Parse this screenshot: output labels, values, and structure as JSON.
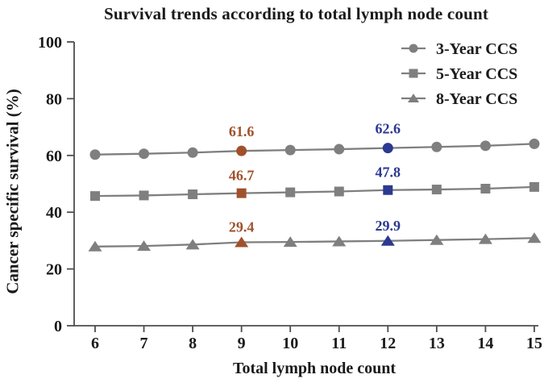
{
  "chart_data": {
    "type": "line",
    "title": "Survival trends according to total lymph node count",
    "xlabel": "Total lymph node count",
    "ylabel": "Cancer specific survival (%)",
    "x": [
      6,
      7,
      8,
      9,
      10,
      11,
      12,
      13,
      14,
      15
    ],
    "xticks": [
      6,
      7,
      8,
      9,
      10,
      11,
      12,
      13,
      14,
      15
    ],
    "yticks": [
      0,
      20,
      40,
      60,
      80,
      100
    ],
    "ylim": [
      0,
      100
    ],
    "grid": false,
    "legend_position": "top-right-inside",
    "series": [
      {
        "name": "3-Year CCS",
        "marker": "circle",
        "values": [
          60.3,
          60.6,
          61.0,
          61.6,
          61.9,
          62.2,
          62.6,
          63.0,
          63.4,
          64.1
        ]
      },
      {
        "name": "5-Year CCS",
        "marker": "square",
        "values": [
          45.7,
          45.9,
          46.3,
          46.7,
          47.0,
          47.3,
          47.8,
          48.0,
          48.3,
          48.9
        ]
      },
      {
        "name": "8-Year CCS",
        "marker": "triangle",
        "values": [
          27.9,
          28.1,
          28.6,
          29.4,
          29.5,
          29.7,
          29.9,
          30.2,
          30.5,
          30.9
        ]
      }
    ],
    "highlight_x_colors": {
      "9": "#A0512C",
      "12": "#2B3990"
    },
    "annotations": [
      {
        "x": 9,
        "series": "3-Year CCS",
        "label": "61.6",
        "color": "#A0512C"
      },
      {
        "x": 9,
        "series": "5-Year CCS",
        "label": "46.7",
        "color": "#A0512C"
      },
      {
        "x": 9,
        "series": "8-Year CCS",
        "label": "29.4",
        "color": "#A0512C"
      },
      {
        "x": 12,
        "series": "3-Year CCS",
        "label": "62.6",
        "color": "#2B3990"
      },
      {
        "x": 12,
        "series": "5-Year CCS",
        "label": "47.8",
        "color": "#2B3990"
      },
      {
        "x": 12,
        "series": "8-Year CCS",
        "label": "29.9",
        "color": "#2B3990"
      }
    ],
    "colors": {
      "series_gray": "#7F7F7F",
      "highlight_brown": "#A0512C",
      "highlight_navy": "#2B3990",
      "axis": "#4D4D4D",
      "text": "#1A1A1A"
    }
  }
}
